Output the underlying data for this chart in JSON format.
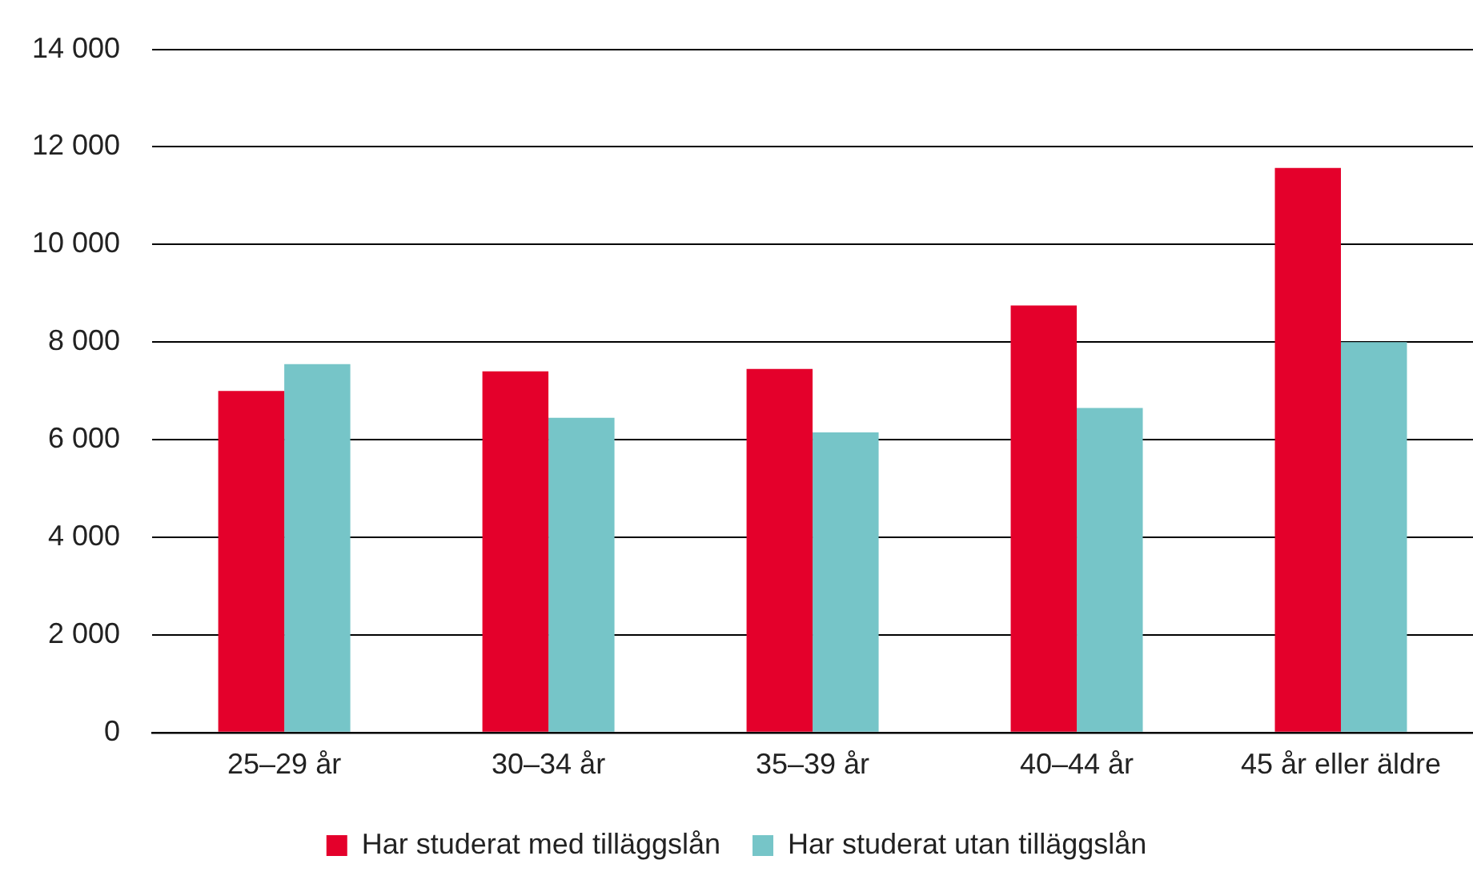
{
  "chart_data": {
    "type": "bar",
    "categories": [
      "25–29 år",
      "30–34 år",
      "35–39 år",
      "40–44 år",
      "45 år eller äldre"
    ],
    "series": [
      {
        "name": "Har studerat med tilläggslån",
        "color": "#e4002b",
        "values": [
          7000,
          7400,
          7450,
          8750,
          11570
        ]
      },
      {
        "name": "Har studerat utan tilläggslån",
        "color": "#76c5c8",
        "values": [
          7550,
          6450,
          6150,
          6650,
          8000
        ]
      }
    ],
    "ylim": [
      0,
      14000
    ],
    "yticks": [
      {
        "value": 0,
        "label": "0"
      },
      {
        "value": 2000,
        "label": "2 000"
      },
      {
        "value": 4000,
        "label": "4 000"
      },
      {
        "value": 6000,
        "label": "6 000"
      },
      {
        "value": 8000,
        "label": "8 000"
      },
      {
        "value": 10000,
        "label": "10 000"
      },
      {
        "value": 12000,
        "label": "12 000"
      },
      {
        "value": 14000,
        "label": "14 000"
      }
    ],
    "grid": "y",
    "legend": "bottom"
  }
}
